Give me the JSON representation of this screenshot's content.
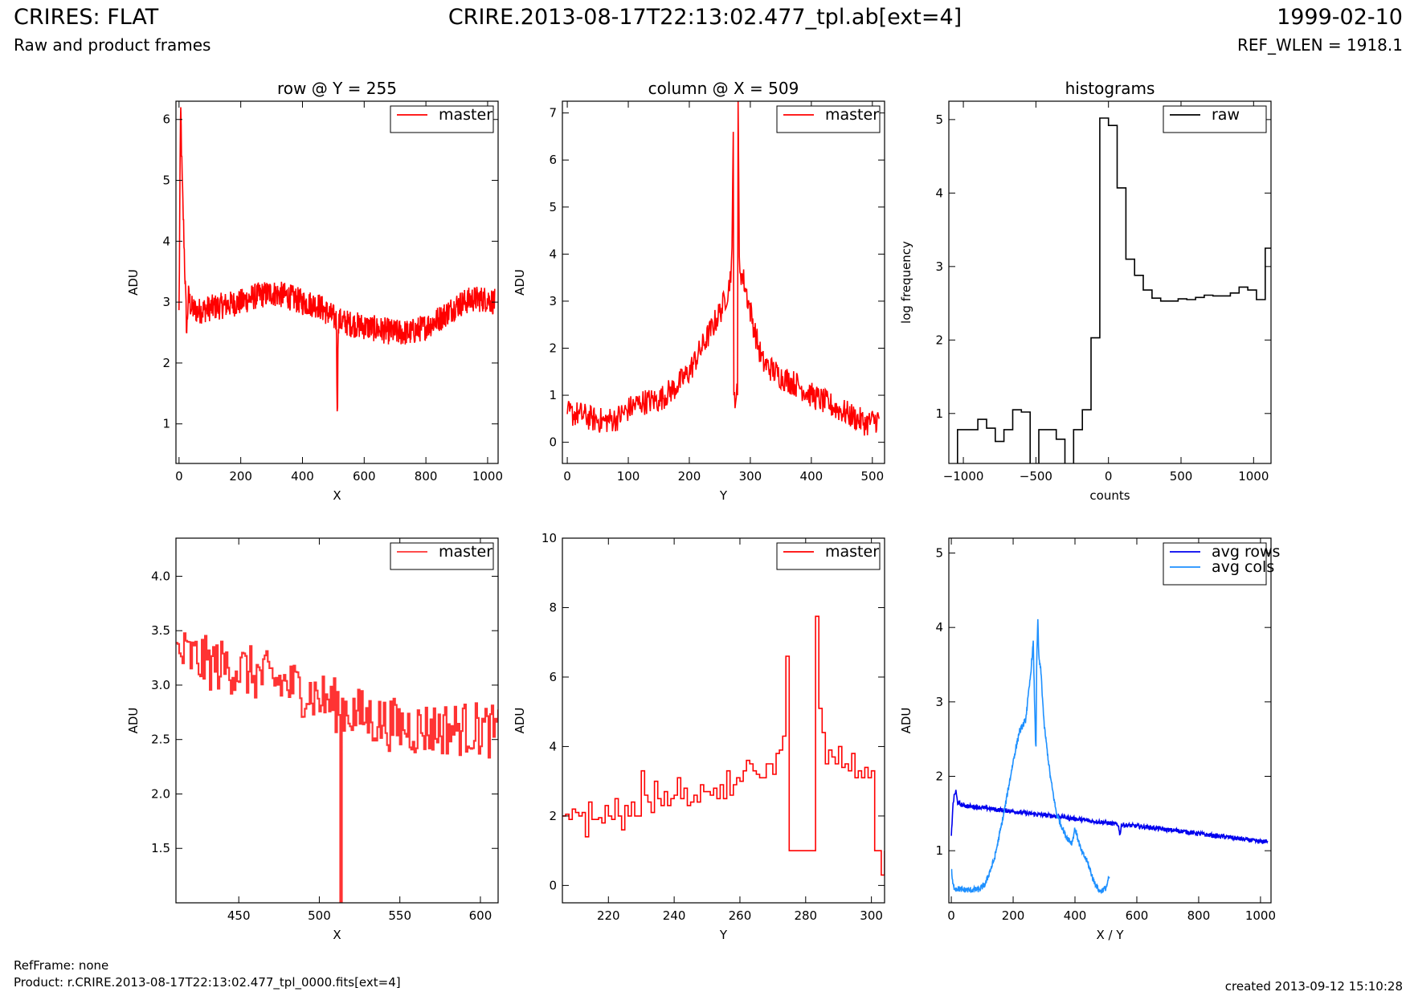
{
  "header": {
    "title_left": "CRIRES: FLAT",
    "subtitle_left": "Raw and product frames",
    "title_center": "CRIRE.2013-08-17T22:13:02.477_tpl.ab[ext=4]",
    "title_right": "1999-02-10",
    "subtitle_right": "REF_WLEN = 1918.1"
  },
  "footer": {
    "refframe": "RefFrame: none",
    "product": "Product: r.CRIRE.2013-08-17T22:13:02.477_tpl_0000.fits[ext=4]",
    "created": "created 2013-09-12 15:10:28"
  },
  "chart_data": [
    {
      "type": "line",
      "title": "row @ Y = 255",
      "xlabel": "X",
      "ylabel": "ADU",
      "xlim": [
        -10,
        1034
      ],
      "ylim": [
        0.35,
        6.3
      ],
      "xticks": [
        0,
        200,
        400,
        600,
        800,
        1000
      ],
      "yticks": [
        1,
        2,
        3,
        4,
        5,
        6
      ],
      "legend_position": "top-right",
      "series": [
        {
          "name": "master",
          "color": "#ff0000",
          "style": "noisy",
          "x": [
            0,
            5,
            10,
            15,
            20,
            25,
            30,
            40,
            60,
            100,
            150,
            200,
            250,
            300,
            350,
            400,
            450,
            500,
            510,
            513,
            516,
            550,
            600,
            650,
            700,
            750,
            800,
            850,
            900,
            950,
            1000,
            1023
          ],
          "y": [
            2.8,
            6.3,
            5.0,
            4.2,
            3.3,
            2.5,
            3.1,
            2.9,
            2.85,
            2.9,
            2.95,
            3.0,
            3.1,
            3.15,
            3.1,
            3.0,
            2.95,
            2.75,
            2.7,
            1.0,
            2.7,
            2.65,
            2.6,
            2.55,
            2.5,
            2.5,
            2.6,
            2.75,
            2.95,
            3.05,
            3.05,
            3.0
          ],
          "noise": 0.22
        }
      ]
    },
    {
      "type": "line",
      "title": "column @ X = 509",
      "xlabel": "Y",
      "ylabel": "ADU",
      "xlim": [
        -8,
        520
      ],
      "ylim": [
        -0.45,
        7.25
      ],
      "xticks": [
        0,
        100,
        200,
        300,
        400,
        500
      ],
      "yticks": [
        0,
        1,
        2,
        3,
        4,
        5,
        6,
        7
      ],
      "legend_position": "top-right",
      "series": [
        {
          "name": "master",
          "color": "#ff0000",
          "style": "noisy",
          "x": [
            0,
            20,
            40,
            60,
            80,
            100,
            120,
            150,
            180,
            200,
            220,
            240,
            255,
            265,
            270,
            272,
            273,
            279,
            280,
            282,
            285,
            290,
            300,
            310,
            320,
            350,
            380,
            400,
            430,
            460,
            490,
            511
          ],
          "y": [
            0.6,
            0.6,
            0.5,
            0.45,
            0.5,
            0.7,
            0.85,
            0.9,
            1.2,
            1.5,
            2.0,
            2.5,
            2.9,
            3.3,
            3.9,
            6.6,
            1.0,
            1.0,
            7.25,
            3.8,
            3.6,
            3.4,
            2.8,
            2.2,
            1.7,
            1.4,
            1.2,
            1.0,
            0.8,
            0.6,
            0.4,
            0.5
          ],
          "noise": 0.28
        }
      ]
    },
    {
      "type": "line",
      "title": "histograms",
      "xlabel": "counts",
      "ylabel": "log frequency",
      "xlim": [
        -1100,
        1120
      ],
      "ylim": [
        0.32,
        5.25
      ],
      "xticks": [
        -1000,
        -500,
        0,
        500,
        1000
      ],
      "yticks": [
        1,
        2,
        3,
        4,
        5
      ],
      "legend_position": "top-right",
      "series": [
        {
          "name": "raw",
          "color": "#000000",
          "style": "step",
          "x": [
            -1100,
            -1040,
            -960,
            -900,
            -840,
            -780,
            -720,
            -660,
            -600,
            -540,
            -480,
            -420,
            -360,
            -300,
            -240,
            -180,
            -120,
            -60,
            0,
            60,
            120,
            180,
            240,
            300,
            360,
            420,
            480,
            540,
            600,
            660,
            720,
            780,
            840,
            900,
            960,
            1020,
            1080,
            1120
          ],
          "y": [
            0.3,
            0.78,
            0.78,
            0.92,
            0.8,
            0.62,
            0.78,
            1.05,
            1.02,
            0.3,
            0.78,
            0.78,
            0.65,
            0.3,
            0.78,
            1.05,
            2.03,
            5.02,
            4.92,
            4.07,
            3.1,
            2.88,
            2.68,
            2.57,
            2.53,
            2.53,
            2.56,
            2.55,
            2.58,
            2.61,
            2.6,
            2.6,
            2.64,
            2.72,
            2.68,
            2.55,
            3.25,
            3.25
          ]
        }
      ]
    },
    {
      "type": "line",
      "xlabel": "X",
      "ylabel": "ADU",
      "xlim": [
        411,
        611
      ],
      "ylim": [
        1.0,
        4.35
      ],
      "xticks": [
        450,
        500,
        550,
        600
      ],
      "yticks": [
        1.5,
        2.0,
        2.5,
        3.0,
        3.5,
        4.0
      ],
      "legend_position": "top-right",
      "series": [
        {
          "name": "master",
          "color": "#ff3333",
          "style": "noisy-step",
          "x": [
            411,
            430,
            450,
            470,
            490,
            505,
            512,
            513,
            514,
            520,
            540,
            560,
            580,
            600,
            611
          ],
          "y": [
            3.3,
            3.2,
            3.15,
            3.05,
            2.95,
            2.85,
            2.8,
            1.0,
            2.8,
            2.75,
            2.65,
            2.6,
            2.6,
            2.6,
            2.55
          ],
          "noise": 0.25
        }
      ]
    },
    {
      "type": "line",
      "xlabel": "Y",
      "ylabel": "ADU",
      "xlim": [
        206,
        304
      ],
      "ylim": [
        -0.5,
        10
      ],
      "xticks": [
        220,
        240,
        260,
        280,
        300
      ],
      "yticks": [
        0,
        2,
        4,
        6,
        8,
        10
      ],
      "legend_position": "top-right",
      "series": [
        {
          "name": "master",
          "color": "#ff0000",
          "style": "step",
          "x": [
            206,
            207,
            208,
            209,
            210,
            211,
            212,
            213,
            214,
            215,
            216,
            217,
            218,
            219,
            220,
            221,
            222,
            223,
            224,
            225,
            226,
            227,
            228,
            229,
            230,
            231,
            232,
            233,
            234,
            235,
            236,
            237,
            238,
            239,
            240,
            241,
            242,
            243,
            244,
            245,
            246,
            247,
            248,
            249,
            250,
            251,
            252,
            253,
            254,
            255,
            256,
            257,
            258,
            259,
            260,
            261,
            262,
            263,
            264,
            265,
            266,
            267,
            268,
            269,
            270,
            271,
            272,
            273,
            274,
            275,
            276,
            277,
            278,
            279,
            280,
            281,
            282,
            283,
            284,
            285,
            286,
            287,
            288,
            289,
            290,
            291,
            292,
            293,
            294,
            295,
            296,
            297,
            298,
            299,
            300,
            301,
            302,
            303,
            304
          ],
          "y": [
            2.0,
            2.05,
            1.9,
            2.2,
            2.1,
            2.0,
            2.1,
            1.4,
            2.4,
            1.9,
            1.9,
            1.95,
            1.8,
            2.3,
            2.0,
            1.9,
            2.5,
            2.0,
            1.6,
            2.3,
            2.0,
            2.4,
            2.0,
            2.0,
            3.3,
            2.6,
            2.4,
            2.1,
            3.0,
            2.5,
            2.3,
            2.7,
            2.3,
            2.5,
            2.6,
            3.1,
            2.5,
            2.8,
            2.3,
            2.4,
            2.6,
            2.4,
            2.9,
            2.7,
            2.7,
            2.6,
            2.8,
            2.5,
            2.9,
            2.5,
            3.3,
            2.6,
            2.9,
            3.1,
            3.0,
            3.3,
            3.6,
            3.5,
            3.3,
            3.2,
            3.1,
            3.1,
            3.5,
            3.5,
            3.2,
            3.8,
            3.9,
            4.3,
            6.6,
            1.0,
            1.0,
            1.0,
            1.0,
            1.0,
            1.0,
            1.0,
            1.0,
            7.75,
            5.1,
            4.4,
            3.5,
            3.9,
            3.7,
            3.5,
            4.0,
            3.4,
            3.5,
            3.3,
            3.8,
            3.1,
            3.3,
            3.1,
            3.4,
            3.1,
            3.3,
            1.0,
            1.0,
            0.3,
            1.0
          ],
          "noise": 0
        }
      ]
    },
    {
      "type": "line",
      "xlabel": "X / Y",
      "ylabel": "ADU",
      "xlim": [
        -8,
        1034
      ],
      "ylim": [
        0.3,
        5.2
      ],
      "xticks": [
        0,
        200,
        400,
        600,
        800,
        1000
      ],
      "yticks": [
        1,
        2,
        3,
        4,
        5
      ],
      "legend_position": "top-right",
      "series": [
        {
          "name": "avg rows",
          "color": "#0000ee",
          "style": "noisy",
          "x": [
            0,
            5,
            10,
            15,
            20,
            30,
            50,
            100,
            150,
            200,
            250,
            300,
            350,
            400,
            450,
            500,
            540,
            545,
            550,
            600,
            650,
            700,
            750,
            800,
            850,
            900,
            950,
            1000,
            1023
          ],
          "y": [
            1.2,
            1.6,
            1.75,
            1.8,
            1.65,
            1.62,
            1.6,
            1.58,
            1.55,
            1.53,
            1.5,
            1.48,
            1.46,
            1.43,
            1.4,
            1.38,
            1.35,
            1.2,
            1.35,
            1.33,
            1.31,
            1.28,
            1.26,
            1.23,
            1.2,
            1.18,
            1.15,
            1.12,
            1.13
          ],
          "noise": 0.03
        },
        {
          "name": "avg cols",
          "color": "#1e90ff",
          "style": "noisy",
          "x": [
            0,
            5,
            10,
            30,
            60,
            90,
            110,
            140,
            170,
            200,
            220,
            240,
            255,
            265,
            272,
            274,
            276,
            280,
            283,
            290,
            300,
            320,
            340,
            370,
            390,
            400,
            420,
            440,
            460,
            480,
            500,
            511
          ],
          "y": [
            0.75,
            0.55,
            0.5,
            0.48,
            0.47,
            0.48,
            0.55,
            0.9,
            1.5,
            2.2,
            2.6,
            2.75,
            3.3,
            3.8,
            2.5,
            2.4,
            3.5,
            4.1,
            3.6,
            3.4,
            2.7,
            2.0,
            1.5,
            1.2,
            1.1,
            1.3,
            1.0,
            0.85,
            0.6,
            0.45,
            0.5,
            0.65
          ],
          "noise": 0.04
        }
      ]
    }
  ]
}
